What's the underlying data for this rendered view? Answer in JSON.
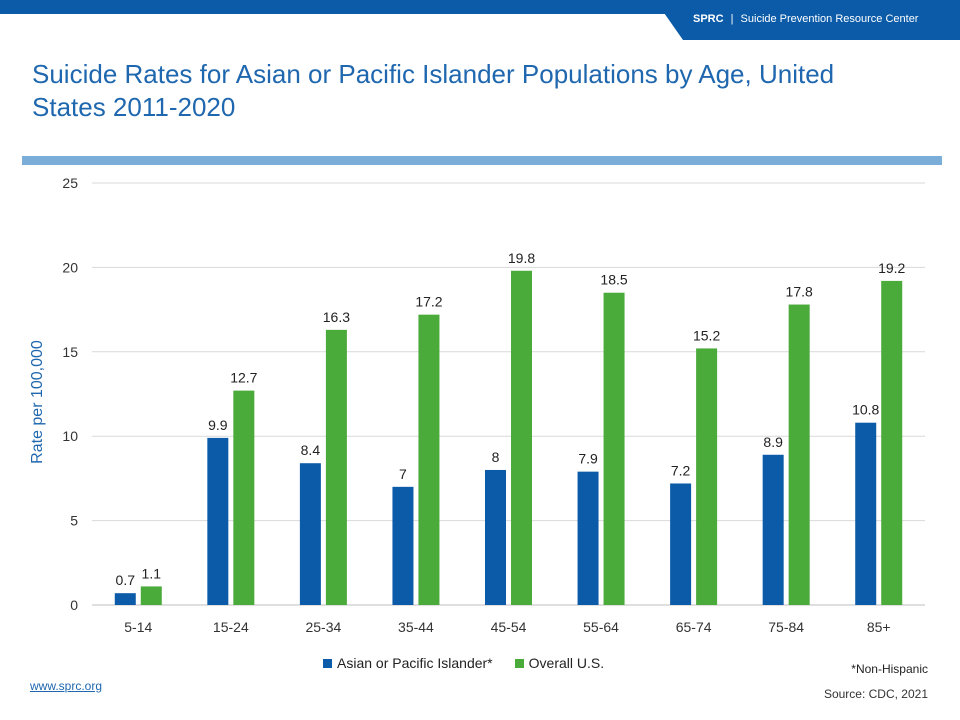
{
  "header": {
    "brand": "SPRC",
    "separator": "|",
    "org_name": "Suicide Prevention Resource Center"
  },
  "colors": {
    "header_blue": "#0b5ba8",
    "title_blue": "#1f67ae",
    "rule_blue": "#7aaed8",
    "asian_series": "#0b5ba8",
    "overall_series": "#4aaa3a"
  },
  "chart_data": {
    "type": "bar",
    "title": "Suicide Rates for Asian or Pacific Islander Populations by Age, United States 2011-2020",
    "xlabel": "",
    "ylabel": "Rate per 100,000",
    "ylim": [
      0,
      25
    ],
    "yticks": [
      0,
      5,
      10,
      15,
      20,
      25
    ],
    "grid": true,
    "legend_position": "bottom",
    "categories": [
      "5-14",
      "15-24",
      "25-34",
      "35-44",
      "45-54",
      "55-64",
      "65-74",
      "75-84",
      "85+"
    ],
    "series": [
      {
        "name": "Asian or Pacific Islander*",
        "color": "#0b5ba8",
        "values": [
          0.7,
          9.9,
          8.4,
          7,
          8,
          7.9,
          7.2,
          8.9,
          10.8
        ]
      },
      {
        "name": "Overall U.S.",
        "color": "#4aaa3a",
        "values": [
          1.1,
          12.7,
          16.3,
          17.2,
          19.8,
          18.5,
          15.2,
          17.8,
          19.2
        ]
      }
    ]
  },
  "footnote": "*Non-Hispanic",
  "source": "Source: CDC, 2021",
  "website": "www.sprc.org"
}
